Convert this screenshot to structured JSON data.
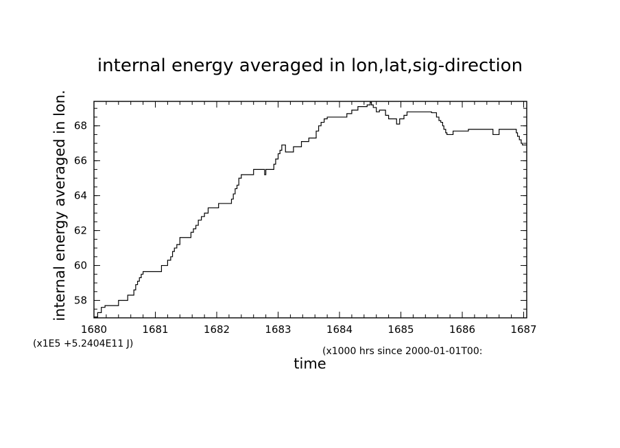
{
  "chart_data": {
    "type": "line",
    "title": "internal energy averaged in lon,lat,sig-direction",
    "xlabel": "time",
    "ylabel": "internal energy averaged in lon.",
    "x_unit_note": "(x1000 hrs  since 2000-01-01T00:",
    "y_scale_note": "(x1E5 +5.2404E11 J)",
    "xlim": [
      1680,
      1687.05
    ],
    "ylim": [
      57,
      69.4
    ],
    "x_ticks": [
      "1680",
      "1681",
      "1682",
      "1683",
      "1684",
      "1685",
      "1686",
      "1687"
    ],
    "y_ticks": [
      "58",
      "60",
      "62",
      "64",
      "66",
      "68"
    ],
    "grid": false,
    "legend": "none",
    "series": [
      {
        "step": true,
        "x": [
          1680.0,
          1680.06,
          1680.12,
          1680.18,
          1680.4,
          1680.55,
          1680.65,
          1680.68,
          1680.71,
          1680.74,
          1680.77,
          1680.8,
          1681.0,
          1681.1,
          1681.2,
          1681.25,
          1681.28,
          1681.31,
          1681.35,
          1681.4,
          1681.5,
          1681.58,
          1681.62,
          1681.66,
          1681.7,
          1681.75,
          1681.8,
          1681.86,
          1681.95,
          1682.03,
          1682.2,
          1682.24,
          1682.27,
          1682.3,
          1682.33,
          1682.36,
          1682.4,
          1682.5,
          1682.6,
          1682.67,
          1682.78,
          1682.8,
          1682.88,
          1682.93,
          1682.96,
          1683.0,
          1683.03,
          1683.06,
          1683.12,
          1683.25,
          1683.38,
          1683.5,
          1683.62,
          1683.66,
          1683.7,
          1683.75,
          1683.8,
          1684.0,
          1684.05,
          1684.12,
          1684.2,
          1684.22,
          1684.3,
          1684.35,
          1684.45,
          1684.5,
          1684.52,
          1684.55,
          1684.6,
          1684.65,
          1684.7,
          1684.75,
          1684.8,
          1684.9,
          1684.93,
          1684.98,
          1685.05,
          1685.1,
          1685.45,
          1685.5,
          1685.58,
          1685.62,
          1685.65,
          1685.68,
          1685.7,
          1685.73,
          1685.75,
          1685.82,
          1685.85,
          1686.0,
          1686.1,
          1686.28,
          1686.5,
          1686.55,
          1686.6,
          1686.7,
          1686.75,
          1686.8,
          1686.88,
          1686.9,
          1686.93,
          1686.96,
          1686.98,
          1687.0,
          1687.05
        ],
        "y": [
          57.05,
          57.3,
          57.6,
          57.7,
          58.0,
          58.3,
          58.6,
          58.9,
          59.1,
          59.3,
          59.5,
          59.65,
          59.65,
          60.0,
          60.3,
          60.5,
          60.8,
          61.0,
          61.2,
          61.6,
          61.6,
          61.9,
          62.1,
          62.3,
          62.6,
          62.8,
          63.0,
          63.3,
          63.3,
          63.55,
          63.55,
          63.8,
          64.1,
          64.4,
          64.6,
          65.0,
          65.2,
          65.2,
          65.5,
          65.5,
          65.2,
          65.5,
          65.5,
          65.8,
          66.1,
          66.4,
          66.6,
          66.9,
          66.5,
          66.8,
          67.1,
          67.3,
          67.7,
          68.0,
          68.2,
          68.4,
          68.5,
          68.5,
          68.5,
          68.7,
          68.9,
          68.9,
          69.1,
          69.1,
          69.2,
          69.35,
          69.2,
          69.05,
          68.8,
          68.9,
          68.9,
          68.6,
          68.4,
          68.4,
          68.1,
          68.4,
          68.6,
          68.8,
          68.8,
          68.75,
          68.5,
          68.3,
          68.2,
          68.0,
          67.8,
          67.6,
          67.5,
          67.5,
          67.7,
          67.7,
          67.8,
          67.8,
          67.5,
          67.5,
          67.8,
          67.8,
          67.8,
          67.8,
          67.6,
          67.4,
          67.2,
          67.0,
          66.9,
          66.9,
          66.9
        ]
      }
    ]
  }
}
